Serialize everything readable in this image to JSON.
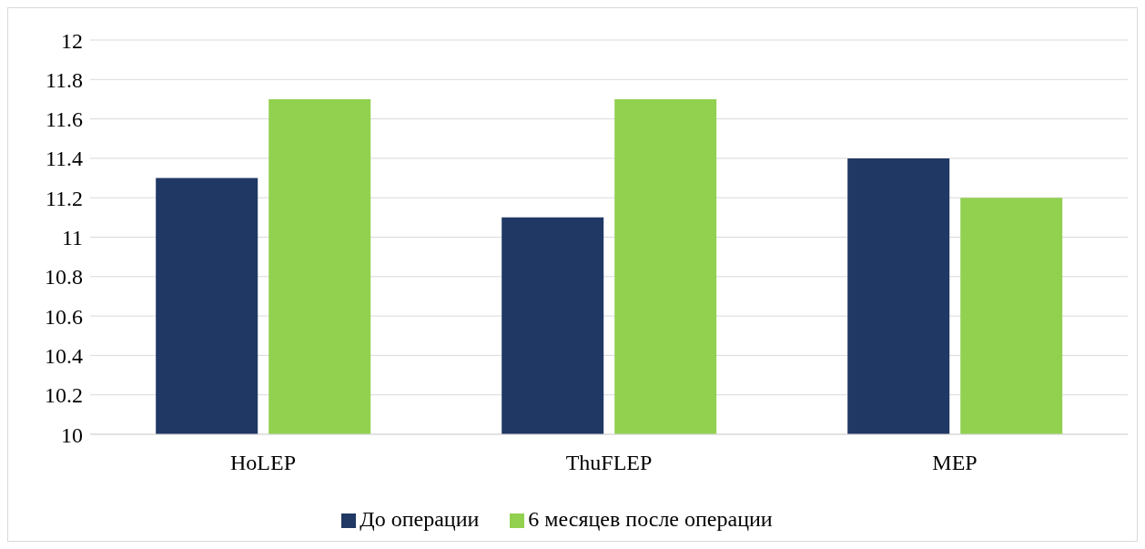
{
  "chart_data": {
    "type": "bar",
    "categories": [
      "HoLEP",
      "ThuFLEP",
      "MEP"
    ],
    "series": [
      {
        "name": "До операции",
        "color": "#203864",
        "values": [
          11.3,
          11.1,
          11.4
        ]
      },
      {
        "name": "6 месяцев после операции",
        "color": "#92d050",
        "values": [
          11.7,
          11.7,
          11.2
        ]
      }
    ],
    "ylim": [
      10,
      12
    ],
    "yticks": [
      10,
      10.2,
      10.4,
      10.6,
      10.8,
      11,
      11.2,
      11.4,
      11.6,
      11.8,
      12
    ],
    "grid": "y",
    "legend": "bottom"
  }
}
